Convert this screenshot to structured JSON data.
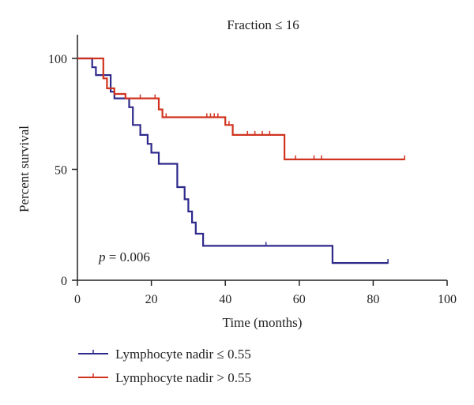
{
  "chart_data": {
    "type": "line",
    "title": "Fraction ≤ 16",
    "xlabel": "Time (months)",
    "ylabel": "Percent survival",
    "xlim": [
      0,
      100
    ],
    "ylim": [
      0,
      100
    ],
    "x_ticks": [
      0,
      20,
      40,
      60,
      80,
      100
    ],
    "y_ticks": [
      0,
      50,
      100
    ],
    "x_tick_labels": [
      "0",
      "20",
      "40",
      "60",
      "80",
      "100"
    ],
    "y_tick_labels": [
      "0",
      "50",
      "100"
    ],
    "annotation": {
      "p_label": "p",
      "p_rest": " = 0.006"
    },
    "legend_position": "bottom-left",
    "series": [
      {
        "name": "Lymphocyte nadir ≤ 0.55",
        "color": "#2e2a8c",
        "steps": [
          [
            0,
            100
          ],
          [
            4,
            100
          ],
          [
            4,
            96
          ],
          [
            5,
            96
          ],
          [
            5,
            92.5
          ],
          [
            9,
            92.5
          ],
          [
            9,
            85
          ],
          [
            10,
            85
          ],
          [
            10,
            82
          ],
          [
            14,
            82
          ],
          [
            14,
            78
          ],
          [
            15,
            78
          ],
          [
            15,
            70
          ],
          [
            17,
            70
          ],
          [
            17,
            65.5
          ],
          [
            19,
            65.5
          ],
          [
            19,
            61.5
          ],
          [
            20,
            61.5
          ],
          [
            20,
            57.5
          ],
          [
            22,
            57.5
          ],
          [
            22,
            52.5
          ],
          [
            27,
            52.5
          ],
          [
            27,
            42
          ],
          [
            29,
            42
          ],
          [
            29,
            36.5
          ],
          [
            30,
            36.5
          ],
          [
            30,
            31
          ],
          [
            31,
            31
          ],
          [
            31,
            26
          ],
          [
            32,
            26
          ],
          [
            32,
            21
          ],
          [
            34,
            21
          ],
          [
            34,
            15.5
          ],
          [
            69,
            15.5
          ],
          [
            69,
            7.8
          ],
          [
            84,
            7.8
          ]
        ],
        "censored": [
          [
            51,
            15.5
          ],
          [
            84,
            7.8
          ]
        ]
      },
      {
        "name": "Lymphocyte nadir > 0.55",
        "color": "#d0331f",
        "steps": [
          [
            0,
            100
          ],
          [
            7,
            100
          ],
          [
            7,
            91
          ],
          [
            8,
            91
          ],
          [
            8,
            86.5
          ],
          [
            10,
            86.5
          ],
          [
            10,
            84
          ],
          [
            13,
            84
          ],
          [
            13,
            82
          ],
          [
            22,
            82
          ],
          [
            22,
            77
          ],
          [
            23,
            77
          ],
          [
            23,
            73.5
          ],
          [
            40,
            73.5
          ],
          [
            40,
            70
          ],
          [
            42,
            70
          ],
          [
            42,
            65.5
          ],
          [
            56,
            65.5
          ],
          [
            56,
            54.5
          ],
          [
            88.5,
            54.5
          ]
        ],
        "censored": [
          [
            17,
            82
          ],
          [
            21,
            82
          ],
          [
            24,
            73.5
          ],
          [
            35,
            73.5
          ],
          [
            36,
            73.5
          ],
          [
            37,
            73.5
          ],
          [
            38,
            73.5
          ],
          [
            41,
            70
          ],
          [
            46,
            65.5
          ],
          [
            48,
            65.5
          ],
          [
            50,
            65.5
          ],
          [
            52,
            65.5
          ],
          [
            59,
            54.5
          ],
          [
            64,
            54.5
          ],
          [
            66,
            54.5
          ],
          [
            88.5,
            54.5
          ]
        ]
      }
    ]
  }
}
